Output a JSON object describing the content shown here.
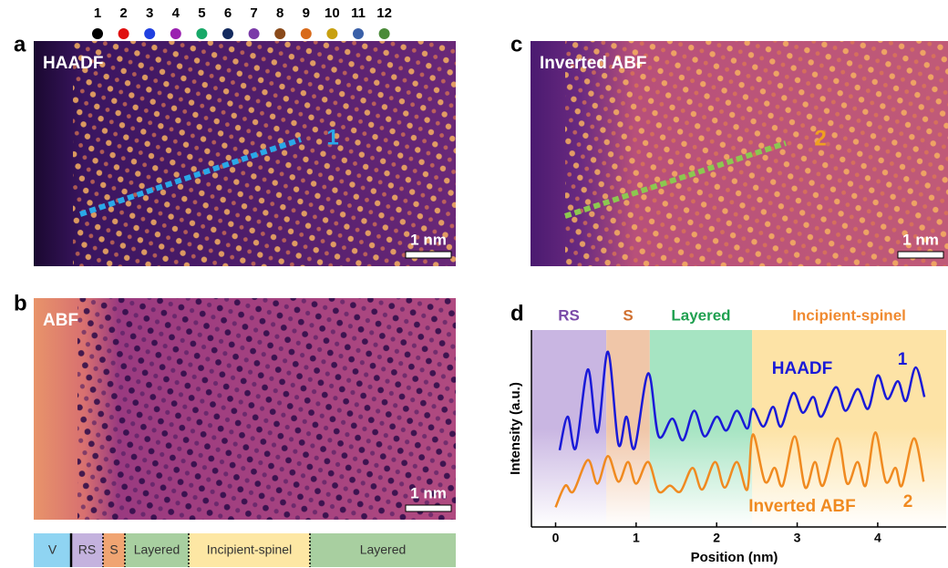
{
  "legend": {
    "labels": [
      "1",
      "2",
      "3",
      "4",
      "5",
      "6",
      "7",
      "8",
      "9",
      "10",
      "11",
      "12"
    ],
    "colors": [
      "#000000",
      "#e01010",
      "#2040e0",
      "#9a20b0",
      "#18a868",
      "#132a5e",
      "#7a3aa8",
      "#8a4a1a",
      "#d86a1a",
      "#c8a010",
      "#3a60a8",
      "#4a8a38"
    ]
  },
  "panels": [
    {
      "letter": "a",
      "label": "HAADF",
      "line_label": "1",
      "line_color": "#2aa8e8",
      "scale_bar": "1 nm"
    },
    {
      "letter": "b",
      "label": "ABF",
      "scale_bar": "1 nm"
    },
    {
      "letter": "c",
      "label": "Inverted ABF",
      "line_label": "2",
      "line_color": "#8cc850",
      "scale_bar": "1 nm"
    }
  ],
  "strip": [
    {
      "label": "V",
      "color": "#8fd4f2"
    },
    {
      "label": "RS",
      "color": "#c4b2de"
    },
    {
      "label": "S",
      "color": "#f0a472"
    },
    {
      "label": "Layered",
      "color": "#a8cfa0"
    },
    {
      "label": "Incipient-spinel",
      "color": "#fde7a4"
    },
    {
      "label": "Layered",
      "color": "#a8cfa0"
    }
  ],
  "chart_data": {
    "type": "line",
    "panel_letter": "d",
    "x_label": "Position (nm)",
    "y_label": "Intensity (a.u.)",
    "xlim": [
      -0.3,
      4.85
    ],
    "xticks": [
      0,
      1,
      2,
      3,
      4
    ],
    "ylim": [
      0,
      10
    ],
    "regions": [
      {
        "name": "RS",
        "start": -0.3,
        "end": 0.63,
        "color": "#c9b6e2",
        "text_color": "#7a4aa8"
      },
      {
        "name": "S",
        "start": 0.63,
        "end": 1.17,
        "color": "#f0c6a8",
        "text_color": "#d07030"
      },
      {
        "name": "Layered",
        "start": 1.17,
        "end": 2.44,
        "color": "#a6e4c2",
        "text_color": "#20a050"
      },
      {
        "name": "Incipient-spinel",
        "start": 2.44,
        "end": 4.85,
        "color": "#fde3a6",
        "text_color": "#f08a30"
      }
    ],
    "series": [
      {
        "name": "HAADF",
        "tag": "1",
        "color": "#1a1ad8",
        "x": [
          0.05,
          0.15,
          0.25,
          0.4,
          0.52,
          0.65,
          0.78,
          0.88,
          0.98,
          1.15,
          1.28,
          1.45,
          1.58,
          1.72,
          1.85,
          2.0,
          2.12,
          2.25,
          2.38,
          2.45,
          2.58,
          2.7,
          2.8,
          2.95,
          3.07,
          3.2,
          3.3,
          3.48,
          3.6,
          3.75,
          3.88,
          4.0,
          4.12,
          4.25,
          4.35,
          4.47,
          4.58
        ],
        "values": [
          3.9,
          5.6,
          4.0,
          8.0,
          4.8,
          8.9,
          4.2,
          5.6,
          4.0,
          7.8,
          4.6,
          5.5,
          4.4,
          5.9,
          4.6,
          5.6,
          4.9,
          5.9,
          5.0,
          6.0,
          5.1,
          6.1,
          5.1,
          6.8,
          5.8,
          6.6,
          5.6,
          7.1,
          5.9,
          7.0,
          6.0,
          7.7,
          6.5,
          7.4,
          6.4,
          8.1,
          6.6
        ]
      },
      {
        "name": "Inverted ABF",
        "tag": "2",
        "color": "#f08a20",
        "x": [
          0.0,
          0.12,
          0.22,
          0.4,
          0.52,
          0.65,
          0.78,
          0.9,
          1.0,
          1.15,
          1.28,
          1.42,
          1.55,
          1.7,
          1.82,
          1.98,
          2.1,
          2.25,
          2.38,
          2.45,
          2.6,
          2.72,
          2.82,
          2.97,
          3.1,
          3.22,
          3.32,
          3.5,
          3.62,
          3.75,
          3.85,
          3.97,
          4.1,
          4.22,
          4.3,
          4.45,
          4.57
        ],
        "values": [
          1.0,
          2.1,
          1.8,
          3.4,
          2.2,
          3.6,
          2.3,
          3.3,
          2.2,
          3.3,
          1.8,
          2.1,
          1.8,
          3.0,
          1.9,
          3.3,
          2.0,
          3.3,
          1.9,
          4.7,
          2.3,
          3.0,
          2.1,
          4.6,
          2.0,
          3.3,
          2.1,
          4.5,
          2.2,
          3.3,
          2.1,
          4.8,
          2.3,
          3.0,
          2.1,
          4.5,
          2.3
        ]
      }
    ]
  }
}
